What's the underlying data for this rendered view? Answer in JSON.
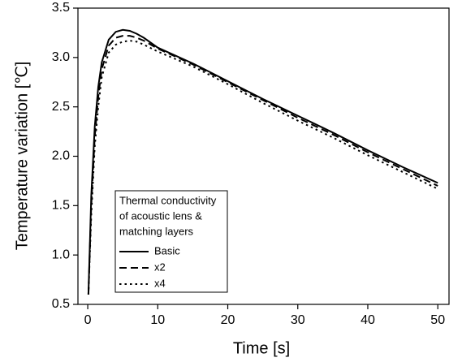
{
  "chart_data": {
    "type": "line",
    "x_label": "Time [s]",
    "y_label": "Temperature variation [℃]",
    "x": [
      0.1,
      0.5,
      1,
      1.5,
      2,
      3,
      4,
      5,
      6,
      7,
      8,
      10,
      15,
      20,
      25,
      30,
      35,
      40,
      45,
      50
    ],
    "series": [
      {
        "name": "Basic",
        "color": "#000000",
        "style": "solid",
        "values": [
          0.6,
          1.6,
          2.3,
          2.7,
          2.95,
          3.18,
          3.26,
          3.28,
          3.27,
          3.24,
          3.2,
          3.1,
          2.94,
          2.76,
          2.58,
          2.41,
          2.24,
          2.06,
          1.89,
          1.73
        ]
      },
      {
        "name": "x2",
        "color": "#000000",
        "style": "dashed",
        "values": [
          0.6,
          1.5,
          2.2,
          2.6,
          2.88,
          3.12,
          3.2,
          3.22,
          3.22,
          3.2,
          3.17,
          3.09,
          2.93,
          2.75,
          2.57,
          2.39,
          2.22,
          2.04,
          1.87,
          1.7
        ]
      },
      {
        "name": "x4",
        "color": "#000000",
        "style": "dotted",
        "values": [
          0.6,
          1.4,
          2.1,
          2.5,
          2.8,
          3.05,
          3.13,
          3.16,
          3.17,
          3.16,
          3.13,
          3.06,
          2.91,
          2.73,
          2.54,
          2.36,
          2.19,
          2.01,
          1.84,
          1.67
        ]
      }
    ],
    "legend_title": [
      "Thermal conductivity",
      "of acoustic lens &",
      "matching layers"
    ],
    "xlim": [
      -1.4,
      51.6
    ],
    "ylim": [
      0.5,
      3.5
    ],
    "xticks": [
      0,
      10,
      20,
      30,
      40,
      50
    ],
    "yticks": [
      0.5,
      {
        "value": 1,
        "label": "1.0"
      },
      1.5,
      {
        "value": 2,
        "label": "2.0"
      },
      2.5,
      {
        "value": 3,
        "label": "3.0"
      },
      3.5
    ]
  }
}
